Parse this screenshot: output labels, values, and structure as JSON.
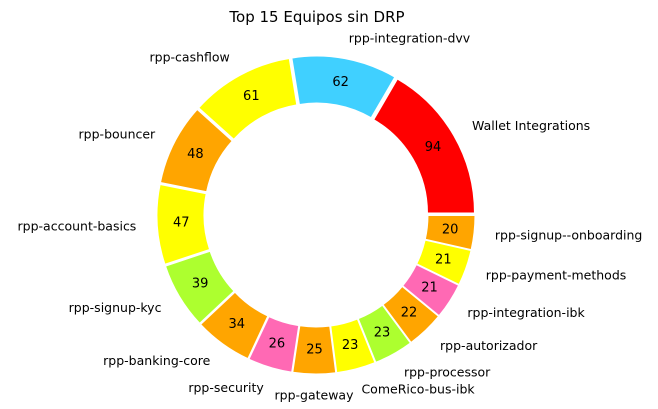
{
  "chart_data": {
    "type": "pie",
    "style": "donut",
    "title": "Top 15 Equipos sin DRP",
    "categories": [
      "Wallet Integrations",
      "rpp-integration-dvv",
      "rpp-cashflow",
      "rpp-bouncer",
      "rpp-account-basics",
      "rpp-signup-kyc",
      "rpp-banking-core",
      "rpp-security",
      "rpp-gateway",
      "ComeRico-bus-ibk",
      "rpp-processor",
      "rpp-autorizador",
      "rpp-integration-ibk",
      "rpp-payment-methods",
      "rpp-signup--onboarding"
    ],
    "values": [
      94,
      62,
      61,
      48,
      47,
      39,
      34,
      26,
      25,
      23,
      23,
      22,
      21,
      21,
      20
    ],
    "colors": [
      "#ff0000",
      "#40d0ff",
      "#ffff00",
      "#ffa500",
      "#ffff00",
      "#adff2f",
      "#ffa500",
      "#ff69b4",
      "#ffa500",
      "#ffff00",
      "#adff2f",
      "#ffa500",
      "#ff69b4",
      "#ffff00",
      "#ffa500"
    ],
    "start_angle_deg": 0,
    "direction": "counterclockwise",
    "legend": "none"
  }
}
